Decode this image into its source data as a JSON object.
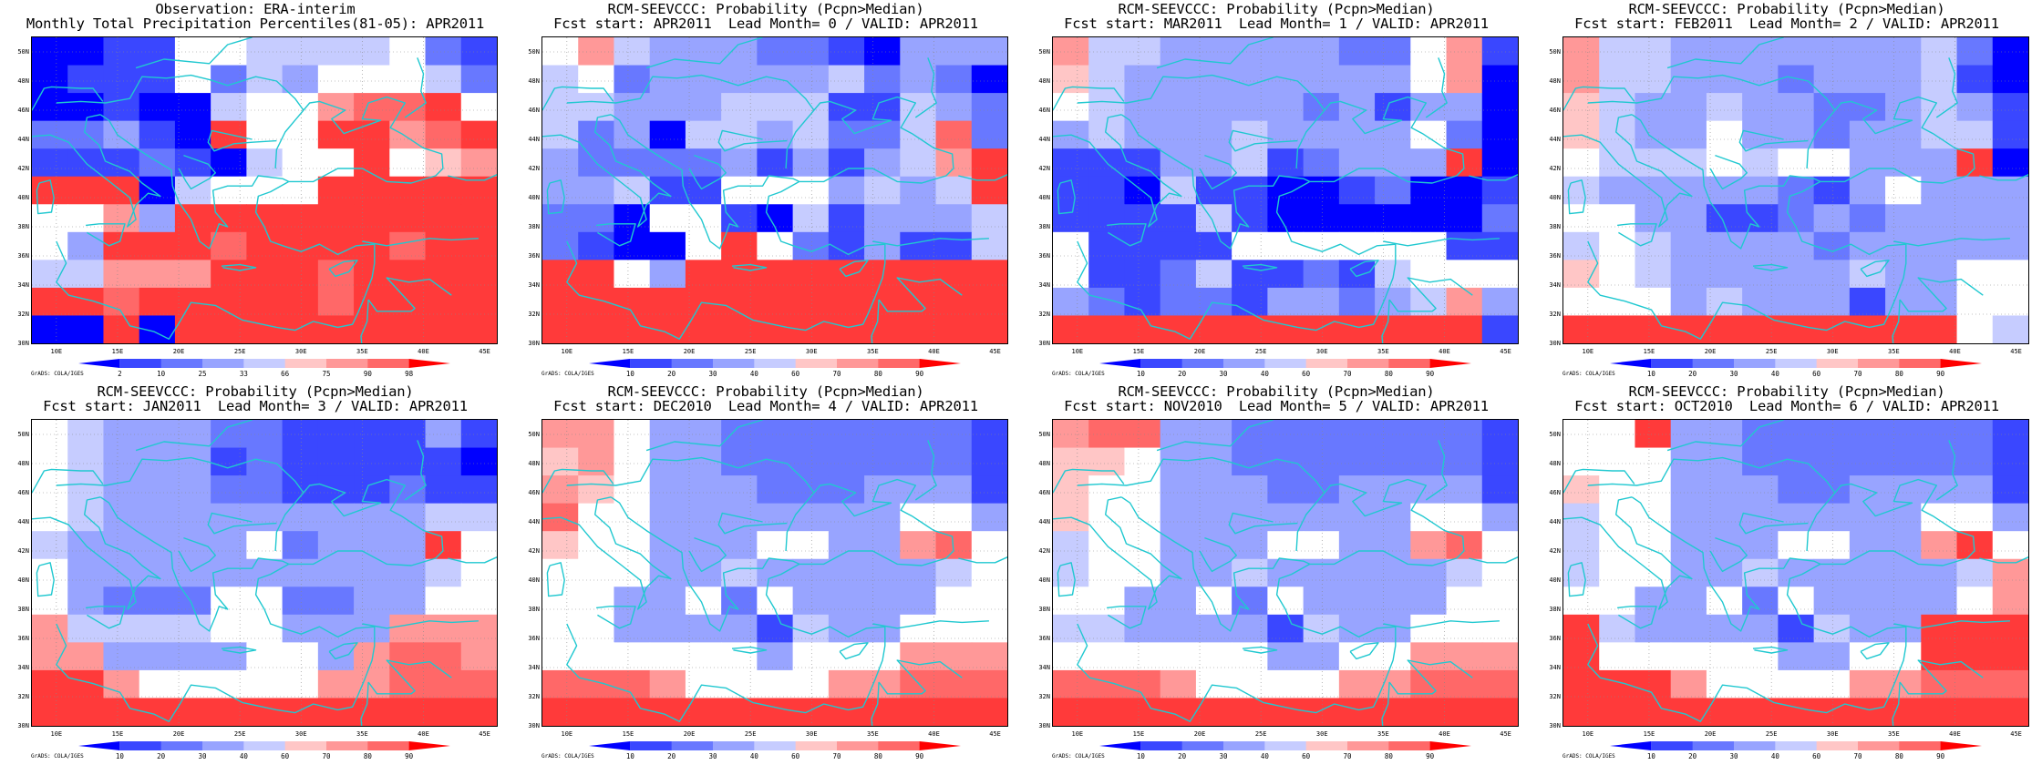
{
  "colors": {
    "palette": [
      "#0000ff",
      "#3a47ff",
      "#6878ff",
      "#98a4ff",
      "#c6ccff",
      "#ffffff",
      "#ffc6c6",
      "#ff9898",
      "#ff6868",
      "#ff3a3a",
      "#ff0000"
    ],
    "coastline": "#20c8d0"
  },
  "credit": "GrADS: COLA/IGES",
  "lat_labels": [
    "50N",
    "48N",
    "46N",
    "44N",
    "42N",
    "40N",
    "38N",
    "36N",
    "34N",
    "32N",
    "30N"
  ],
  "lon_labels": [
    "10E",
    "15E",
    "20E",
    "25E",
    "30E",
    "35E",
    "40E",
    "45E"
  ],
  "panels": [
    {
      "title1": "Observation: ERA-interim",
      "title2": "Monthly Total Precipitation Percentiles(81-05): APR2011",
      "cb_labels": [
        "2",
        "10",
        "25",
        "33",
        "66",
        "75",
        "90",
        "98"
      ],
      "grid": [
        "0011554444521",
        "0111524355542",
        "0010045578895",
        "2231095599789",
        "1112104559567",
        "9990455599999",
        "5573999999999",
        "5399989999899",
        "4477799989999",
        "9989999989999",
        "0090999999999"
      ]
    },
    {
      "title1": "RCM-SEEVCCC: Probability (Pcpn>Median)",
      "title2": "Fcst start: APR2011  Lead Month= 0 / VALID: APR2011",
      "cb_labels": [
        "10",
        "20",
        "30",
        "40",
        "60",
        "70",
        "80",
        "90"
      ],
      "grid": [
        "5743332210333",
        "4523333342320",
        "4433344411432",
        "4230443422482",
        "3222231313479",
        "3341155534349",
        "2205510413334",
        "2100595213114",
        "9953999999999",
        "9999999999999",
        "9999999999999"
      ]
    },
    {
      "title1": "RCM-SEEVCCC: Probability (Pcpn>Median)",
      "title2": "Fcst start: MAR2011  Lead Month= 1 / VALID: APR2011",
      "cb_labels": [
        "10",
        "20",
        "30",
        "40",
        "60",
        "70",
        "80",
        "90"
      ],
      "grid": [
        "7443333322571",
        "6433333333570",
        "5433333231330",
        "3433343333520",
        "1113341233390",
        "1104110012001",
        "1111410000002",
        "5111155555511",
        "5112411214555",
        "3212213323473",
        "9999999999991"
      ]
    },
    {
      "title1": "RCM-SEEVCCC: Probability (Pcpn>Median)",
      "title2": "Fcst start: FEB2011  Lead Month= 2 / VALID: APR2011",
      "cb_labels": [
        "10",
        "20",
        "30",
        "40",
        "60",
        "70",
        "80",
        "90"
      ],
      "grid": [
        "7443333333420",
        "7443332333410",
        "6433433223431",
        "6433533233441",
        "5444545533390",
        "4333332135333",
        "5533112323333",
        "4543333233333",
        "6543333343355",
        "5553433313355",
        "9999999999954"
      ]
    },
    {
      "title1": "RCM-SEEVCCC: Probability (Pcpn>Median)",
      "title2": "Fcst start: JAN2011  Lead Month= 3 / VALID: APR2011",
      "cb_labels": [
        "10",
        "20",
        "30",
        "40",
        "60",
        "70",
        "80",
        "90"
      ],
      "grid": [
        "5433322111131",
        "5433312111110",
        "5433322111211",
        "5433333333344",
        "4333335233395",
        "5333333333345",
        "5322255223355",
        "7444455333777",
        "7733335537887",
        "9975555577888",
        "9999999999999"
      ]
    },
    {
      "title1": "RCM-SEEVCCC: Probability (Pcpn>Median)",
      "title2": "Fcst start: DEC2010  Lead Month= 4 / VALID: APR2011",
      "cb_labels": [
        "10",
        "20",
        "30",
        "40",
        "60",
        "70",
        "80",
        "90"
      ],
      "grid": [
        "7753322222221",
        "6753322222221",
        "7653332223331",
        "8553333333553",
        "6553335533785",
        "5553343333345",
        "5533525333355",
        "5533331433555",
        "5555553555777",
        "8887555577888",
        "9999999999999"
      ]
    },
    {
      "title1": "RCM-SEEVCCC: Probability (Pcpn>Median)",
      "title2": "Fcst start: NOV2010  Lead Month= 5 / VALID: APR2011",
      "cb_labels": [
        "10",
        "20",
        "30",
        "40",
        "60",
        "70",
        "80",
        "90"
      ],
      "grid": [
        "7883322222221",
        "6653322222221",
        "6553332233331",
        "6553333333553",
        "4553335533785",
        "4553343333345",
        "5533525333355",
        "4433331433555",
        "5555553355777",
        "8887555577888",
        "9999999999999"
      ]
    },
    {
      "title1": "RCM-SEEVCCC: Probability (Pcpn>Median)",
      "title2": "Fcst start: OCT2010  Lead Month= 6 / VALID: APR2011",
      "cb_labels": [
        "10",
        "20",
        "30",
        "40",
        "60",
        "70",
        "80",
        "90"
      ],
      "grid": [
        "5593322222221",
        "5553322222221",
        "6553332233331",
        "4553333333553",
        "4553335533795",
        "4553343333347",
        "5533525333357",
        "9433331433999",
        "9555553355999",
        "9997555577888",
        "9999999999999"
      ]
    }
  ]
}
